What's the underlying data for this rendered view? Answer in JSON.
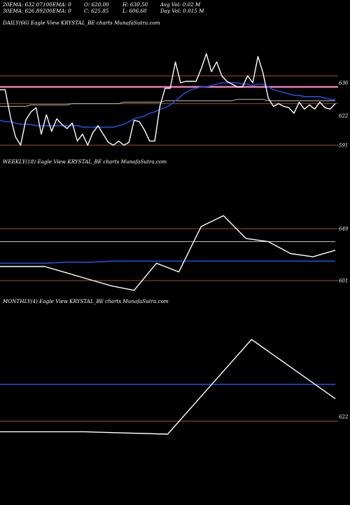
{
  "header": {
    "row1": [
      "20EMA: 632.07",
      "100EMA: 0",
      "O: 620.00",
      "H: 630.50",
      "Avg Vol: 0.02  M"
    ],
    "row2": [
      "30EMA: 626.89",
      "200EMA: 0",
      "C: 625.85",
      "L: 606.60",
      "Day Vol: 0.015 M"
    ]
  },
  "colors": {
    "background": "#000000",
    "price_line": "#ffffff",
    "ema_blue": "#1f4fd6",
    "ema_white": "#bfbfbf",
    "level_line": "#a0522d",
    "pink_line": "#ff7fbf"
  },
  "chart_data": [
    {
      "type": "line",
      "title": "DAILY(66) Eagle   View  KRYSTAL_BE charts MunafaSutra.com",
      "yticks": [
        "636",
        "622",
        "591"
      ],
      "series": [
        {
          "role": "price",
          "values": [
            631,
            631,
            612,
            597,
            591,
            609,
            615,
            618,
            599,
            613,
            601,
            610,
            606,
            603,
            607,
            594,
            599,
            591,
            600,
            605,
            599,
            593,
            591,
            594,
            591,
            593,
            609,
            608,
            602,
            594,
            594,
            619,
            632,
            632,
            651,
            636,
            637,
            637,
            637,
            646,
            657,
            644,
            651,
            641,
            637,
            635,
            633,
            633,
            641,
            636,
            655,
            643,
            625,
            619,
            621,
            619,
            618,
            614,
            622,
            617,
            620,
            617,
            622,
            618,
            617,
            621
          ]
        },
        {
          "role": "ema-blue",
          "values": [
            609,
            608,
            608,
            607,
            606,
            606,
            606,
            605,
            605,
            605,
            605,
            605,
            605,
            605,
            605,
            605,
            604,
            604,
            604,
            604,
            604,
            604,
            604,
            605,
            606,
            608,
            610,
            611,
            612,
            614,
            615,
            617,
            618,
            620,
            623,
            626,
            629,
            631,
            632,
            633,
            633,
            634,
            635,
            636,
            636,
            636,
            636,
            635,
            635,
            634,
            635,
            635,
            633,
            631,
            630,
            629,
            628,
            627,
            627,
            626,
            626,
            626,
            626,
            625,
            624,
            624
          ]
        },
        {
          "role": "ema-white",
          "values": [
            619,
            619,
            619,
            619,
            619,
            619,
            620,
            620,
            620,
            620,
            620,
            620,
            620,
            620,
            621,
            621,
            621,
            621,
            621,
            621,
            621,
            621,
            621,
            621,
            622,
            622,
            622,
            622,
            622,
            622,
            622,
            622,
            623,
            623,
            623,
            623,
            623,
            623,
            623,
            623,
            623,
            623,
            623,
            623,
            623,
            623,
            624,
            624,
            624,
            624,
            624,
            624,
            623,
            623,
            623,
            623,
            623,
            623,
            623,
            623,
            623,
            623,
            623,
            623,
            623,
            623
          ]
        }
      ],
      "levels": [
        {
          "role": "brown-upper",
          "value": 641
        },
        {
          "role": "pink",
          "value": 633
        },
        {
          "role": "brown-mid",
          "value": 621
        },
        {
          "role": "brown-lower",
          "value": 591
        }
      ]
    },
    {
      "type": "line",
      "title": "WEEKLY(18) Eagle   View  KRYSTAL_BE charts MunafaSutra.com",
      "yticks": [
        "649",
        "601"
      ],
      "series": [
        {
          "role": "price",
          "values": [
            614,
            614,
            614,
            608,
            602,
            596,
            592,
            617,
            609,
            651,
            661,
            640,
            637,
            626,
            623,
            629
          ]
        },
        {
          "role": "ema-blue",
          "values": [
            617,
            617,
            617,
            618,
            618,
            619,
            619,
            619,
            619,
            619,
            619,
            619,
            619,
            619,
            619,
            619
          ]
        },
        {
          "role": "ema-white",
          "values": [
            637,
            637,
            637,
            637,
            637,
            637,
            637,
            637,
            637,
            637,
            637,
            637,
            637,
            637,
            637,
            637
          ]
        }
      ],
      "levels": [
        {
          "role": "brown-upper",
          "value": 649
        },
        {
          "role": "brown-lower",
          "value": 601
        }
      ]
    },
    {
      "type": "line",
      "title": "MONTHLY(4) Eagle   View  KRYSTAL_BE charts MunafaSutra.com",
      "yticks": [
        "622"
      ],
      "series": [
        {
          "role": "price",
          "values": [
            613,
            613,
            611,
            691,
            641
          ]
        },
        {
          "role": "ema-blue",
          "values": [
            653,
            653,
            653,
            653,
            653
          ]
        }
      ],
      "levels": [
        {
          "role": "brown-lower",
          "value": 622
        }
      ]
    }
  ]
}
